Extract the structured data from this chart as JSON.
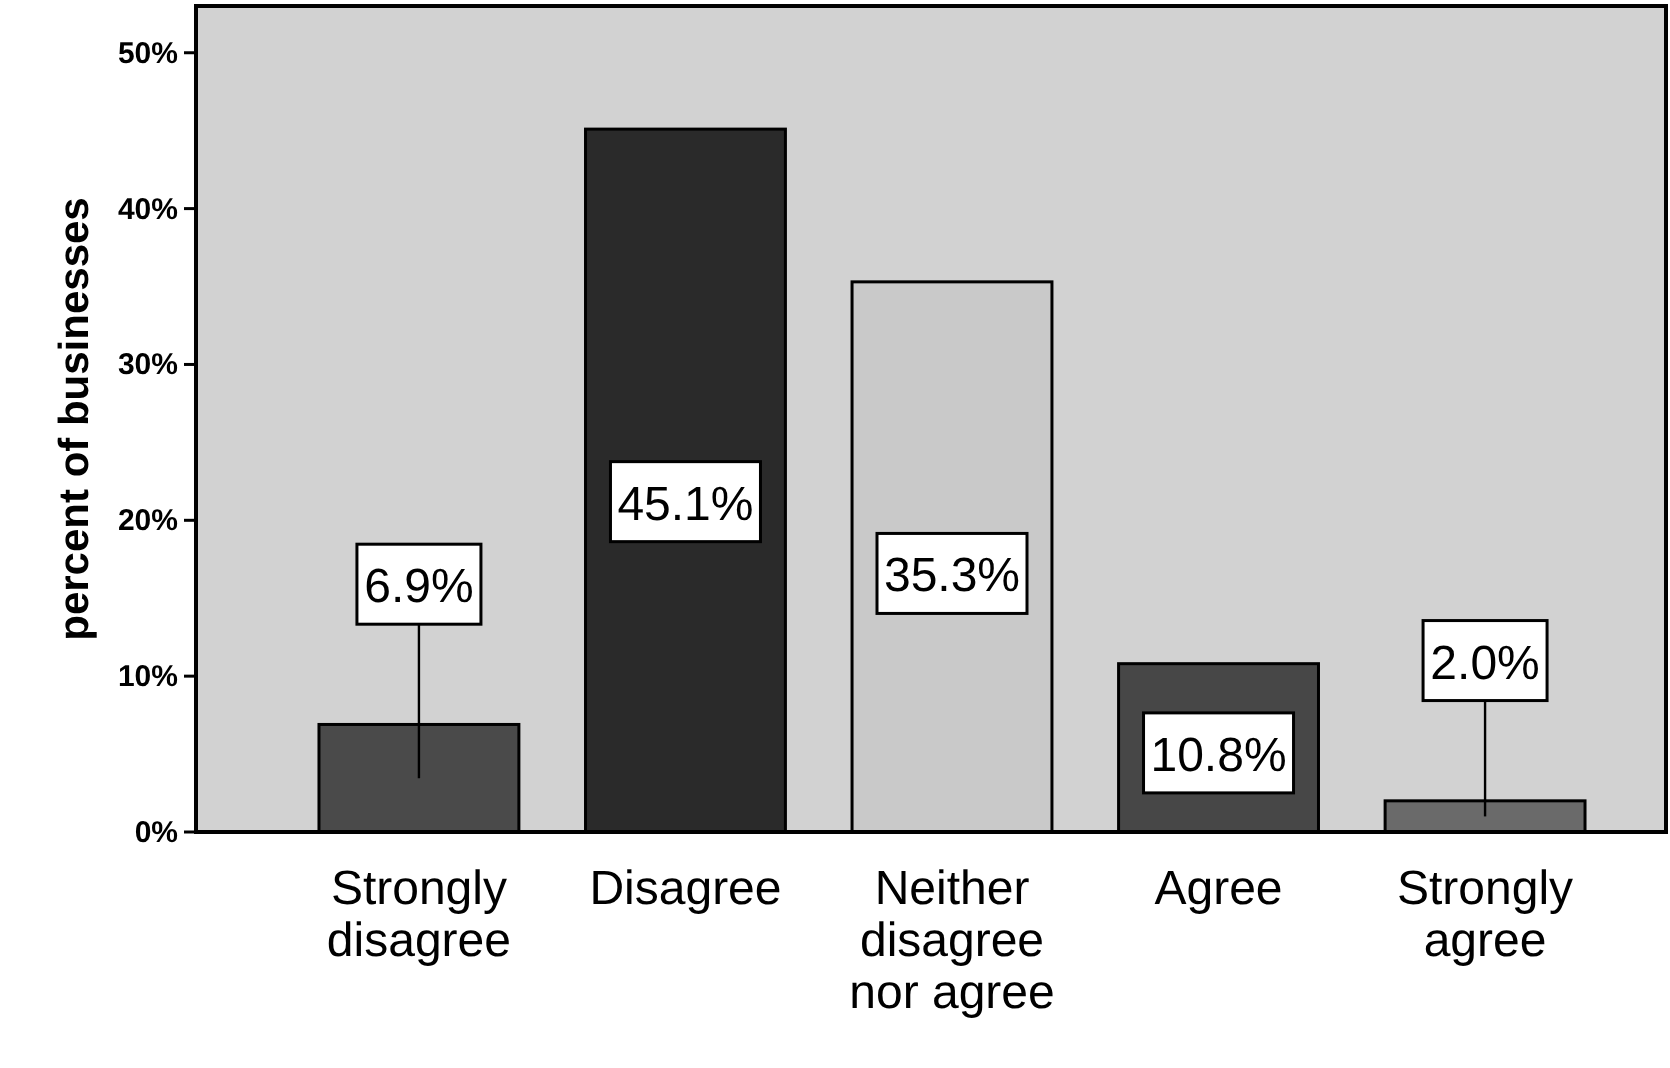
{
  "chart_data": {
    "type": "bar",
    "ylabel": "percent of businesses",
    "categories": [
      "Strongly disagree",
      "Disagree",
      "Neither disagree nor agree",
      "Agree",
      "Strongly agree"
    ],
    "values": [
      6.9,
      45.1,
      35.3,
      10.8,
      2.0
    ],
    "colors": [
      "#4a4a4a",
      "#2a2a2a",
      "#c9c9c9",
      "#474747",
      "#6a6a6a"
    ],
    "value_labels": [
      "6.9%",
      "45.1%",
      "35.3%",
      "10.8%",
      "2.0%"
    ],
    "ylim": [
      0,
      53
    ],
    "yticks": [
      {
        "value": 0,
        "label": "0%"
      },
      {
        "value": 10,
        "label": "10%"
      },
      {
        "value": 20,
        "label": "20%"
      },
      {
        "value": 30,
        "label": "30%"
      },
      {
        "value": 40,
        "label": "40%"
      },
      {
        "value": 50,
        "label": "50%"
      }
    ],
    "grid": false
  }
}
